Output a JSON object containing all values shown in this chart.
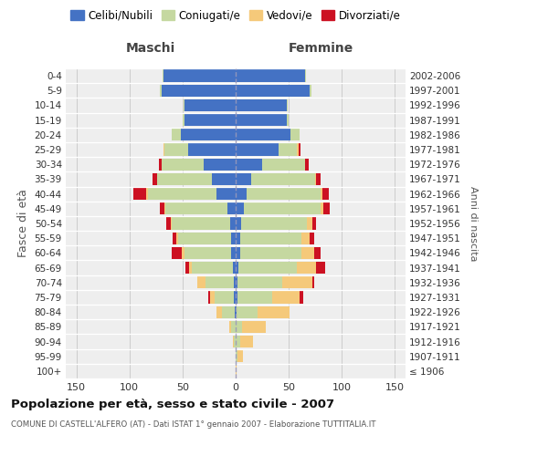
{
  "age_groups": [
    "100+",
    "95-99",
    "90-94",
    "85-89",
    "80-84",
    "75-79",
    "70-74",
    "65-69",
    "60-64",
    "55-59",
    "50-54",
    "45-49",
    "40-44",
    "35-39",
    "30-34",
    "25-29",
    "20-24",
    "15-19",
    "10-14",
    "5-9",
    "0-4"
  ],
  "birth_years": [
    "≤ 1906",
    "1907-1911",
    "1912-1916",
    "1917-1921",
    "1922-1926",
    "1927-1931",
    "1932-1936",
    "1937-1941",
    "1942-1946",
    "1947-1951",
    "1952-1956",
    "1957-1961",
    "1962-1966",
    "1967-1971",
    "1972-1976",
    "1977-1981",
    "1982-1986",
    "1987-1991",
    "1992-1996",
    "1997-2001",
    "2002-2006"
  ],
  "male_celibi": [
    0,
    0,
    0,
    0,
    1,
    2,
    2,
    3,
    4,
    4,
    5,
    8,
    18,
    22,
    30,
    45,
    52,
    48,
    48,
    70,
    68
  ],
  "male_coniugati": [
    0,
    0,
    2,
    4,
    12,
    18,
    26,
    38,
    44,
    50,
    55,
    58,
    65,
    52,
    40,
    22,
    8,
    2,
    1,
    1,
    1
  ],
  "male_vedovi": [
    0,
    0,
    1,
    2,
    5,
    4,
    8,
    3,
    3,
    2,
    1,
    1,
    1,
    0,
    0,
    1,
    0,
    0,
    0,
    0,
    0
  ],
  "male_divorziati": [
    0,
    0,
    0,
    0,
    0,
    2,
    0,
    3,
    9,
    3,
    4,
    4,
    12,
    4,
    2,
    0,
    0,
    0,
    0,
    0,
    0
  ],
  "female_nubili": [
    0,
    0,
    0,
    0,
    1,
    2,
    2,
    3,
    4,
    4,
    5,
    8,
    10,
    15,
    25,
    40,
    52,
    48,
    48,
    70,
    65
  ],
  "female_coniugate": [
    0,
    2,
    4,
    6,
    20,
    32,
    42,
    55,
    58,
    58,
    62,
    72,
    70,
    60,
    40,
    18,
    8,
    2,
    1,
    1,
    1
  ],
  "female_vedove": [
    1,
    5,
    12,
    22,
    30,
    26,
    28,
    18,
    12,
    8,
    5,
    3,
    2,
    1,
    0,
    1,
    0,
    0,
    0,
    0,
    0
  ],
  "female_divorziate": [
    0,
    0,
    0,
    0,
    0,
    4,
    2,
    8,
    6,
    4,
    4,
    6,
    6,
    4,
    4,
    2,
    0,
    0,
    0,
    0,
    0
  ],
  "color_celibi": "#4472c4",
  "color_coniugati": "#c5d8a0",
  "color_vedovi": "#f5c97a",
  "color_divorziati": "#cc1122",
  "bg_plot": "#eeeeee",
  "bg_fig": "#ffffff",
  "xlim": 160,
  "title": "Popolazione per età, sesso e stato civile - 2007",
  "subtitle": "COMUNE DI CASTELL'ALFERO (AT) - Dati ISTAT 1° gennaio 2007 - Elaborazione TUTTITALIA.IT",
  "label_maschi": "Maschi",
  "label_femmine": "Femmine",
  "ylabel_left": "Fasce di età",
  "ylabel_right": "Anni di nascita",
  "legend_labels": [
    "Celibi/Nubili",
    "Coniugati/e",
    "Vedovi/e",
    "Divorziati/e"
  ],
  "xtick_vals": [
    -150,
    -100,
    -50,
    0,
    50,
    100,
    150
  ]
}
